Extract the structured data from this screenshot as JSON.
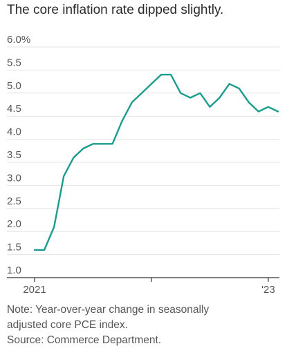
{
  "title": "The core inflation rate dipped slightly.",
  "notes": [
    "Note: Year-over-year change in seasonally",
    "adjusted core PCE index.",
    "Source: Commerce Department."
  ],
  "colors": {
    "line": "#1a9c8c",
    "grid": "#e3e3e3",
    "axis": "#333333",
    "text": "#555555"
  },
  "chart_data": {
    "type": "line",
    "title": "The core inflation rate dipped slightly.",
    "xlabel": "",
    "ylabel": "",
    "ylim": [
      1.0,
      6.0
    ],
    "yticks": [
      "1.0",
      "1.5",
      "2.0",
      "2.5",
      "3.0",
      "3.5",
      "4.0",
      "4.5",
      "5.0",
      "5.5",
      "6.0%"
    ],
    "xticks": [
      {
        "label": "2021",
        "index": 0
      },
      {
        "label": "",
        "index": 12
      },
      {
        "label": "'23",
        "index": 24
      }
    ],
    "grid": true,
    "series": [
      {
        "name": "",
        "values": [
          1.6,
          1.6,
          2.1,
          3.2,
          3.6,
          3.8,
          3.9,
          3.9,
          3.9,
          4.4,
          4.8,
          5.0,
          5.2,
          5.4,
          5.4,
          5.0,
          4.9,
          5.0,
          4.7,
          4.9,
          5.2,
          5.1,
          4.8,
          4.6,
          4.7,
          4.6
        ]
      }
    ]
  }
}
